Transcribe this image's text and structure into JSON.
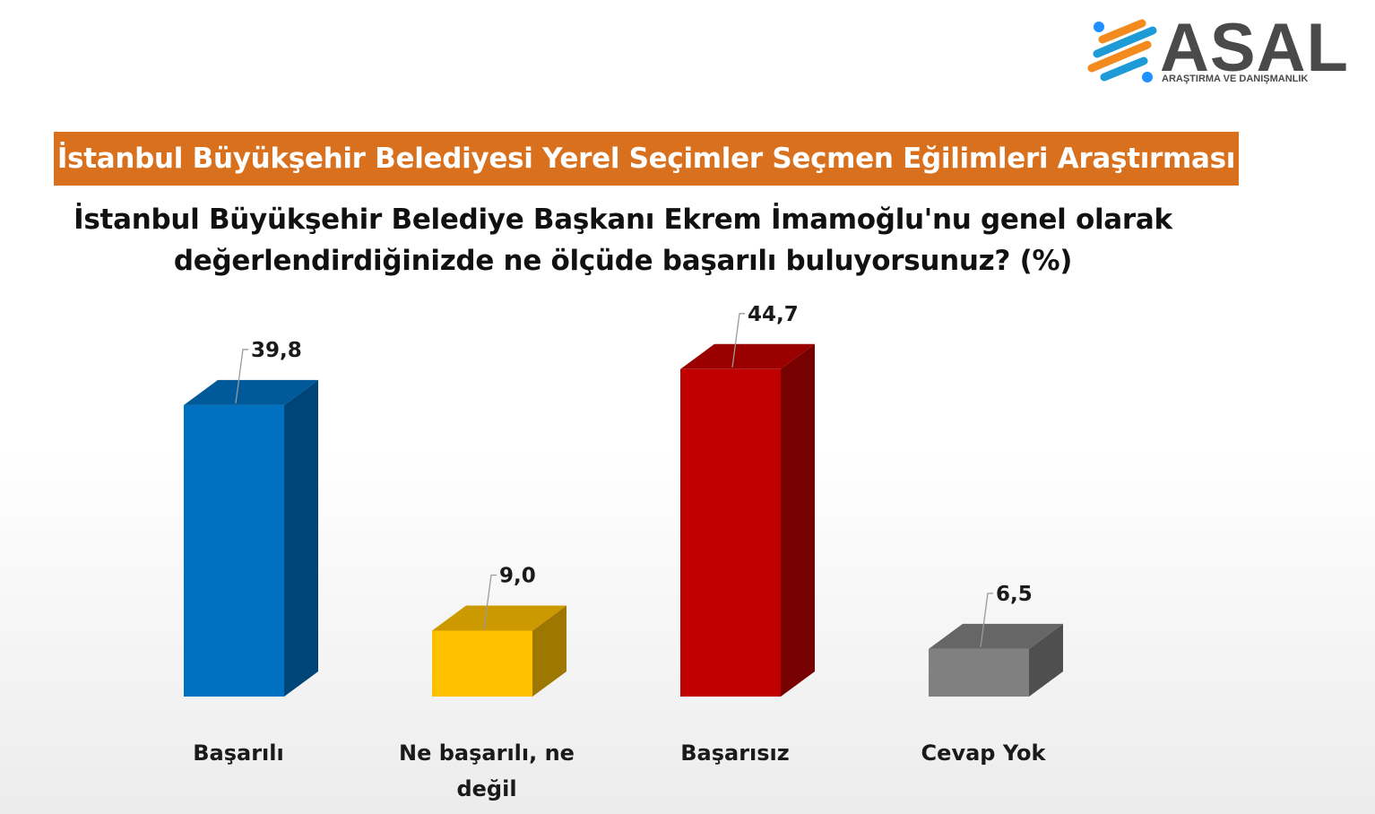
{
  "logo": {
    "name": "ASAL",
    "subtitle": "ARAŞTIRMA VE DANIŞMANLIK"
  },
  "banner": {
    "title": "İstanbul Büyükşehir Belediyesi Yerel Seçimler Seçmen Eğilimleri Araştırması"
  },
  "question": {
    "line1": "İstanbul Büyükşehir Belediye Başkanı Ekrem İmamoğlu'nu genel olarak",
    "line2": "değerlendirdiğinizde ne ölçüde başarılı buluyorsunuz? (%)"
  },
  "chart_data": {
    "type": "bar",
    "title": "",
    "categories": [
      "Başarılı",
      "Ne başarılı, ne değil",
      "Başarısız",
      "Cevap Yok"
    ],
    "values": [
      39.8,
      9.0,
      44.7,
      6.5
    ],
    "data_labels": [
      "39,8",
      "9,0",
      "44,7",
      "6,5"
    ],
    "colors": [
      "#0070c0",
      "#ffc000",
      "#c00000",
      "#808080"
    ],
    "ylim": [
      0,
      50
    ],
    "grid": false,
    "legend": "none"
  }
}
